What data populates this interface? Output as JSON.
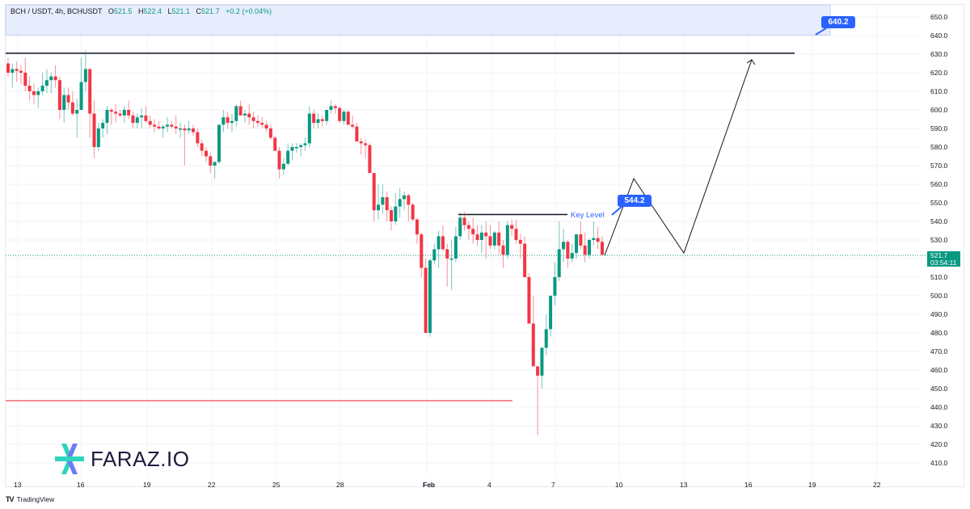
{
  "legend": {
    "symbol": "BCH / USDT, 4h, BCHUSDT",
    "open_label": "O",
    "open": "521.5",
    "high_label": "H",
    "high": "522.4",
    "low_label": "L",
    "low": "521.1",
    "close_label": "C",
    "close": "521.7",
    "change": "+0.2 (+0.04%)"
  },
  "price_axis": {
    "labels": [
      "650.0",
      "640.0",
      "630.0",
      "620.0",
      "610.0",
      "600.0",
      "590.0",
      "580.0",
      "570.0",
      "560.0",
      "550.0",
      "540.0",
      "530.0",
      "520.0",
      "510.0",
      "500.0",
      "490.0",
      "480.0",
      "470.0",
      "460.0",
      "450.0",
      "440.0",
      "430.0",
      "420.0",
      "410.0"
    ],
    "last_price": "521.7",
    "countdown": "03:54:11"
  },
  "time_axis": {
    "labels": [
      "13",
      "16",
      "19",
      "22",
      "25",
      "28",
      "Feb",
      "4",
      "7",
      "10",
      "13",
      "16",
      "19",
      "22"
    ]
  },
  "annotations": {
    "target_zone_callout": "640.2",
    "key_level_callout": "544.2",
    "key_level_text": "Key Level"
  },
  "branding": {
    "logo_text": "FARAZ.IO",
    "footer": "TradingView"
  },
  "colors": {
    "up": "#089981",
    "down": "#f23645",
    "accent": "#2962ff",
    "zone_fill": "#e8edfd",
    "support_line": "#f23645",
    "resistance_line": "#131722"
  },
  "chart_data": {
    "type": "candlestick",
    "title": "BCH / USDT, 4h, BCHUSDT",
    "xlabel": "",
    "ylabel": "",
    "ylim": [
      405,
      655
    ],
    "x_ticks": [
      "13",
      "16",
      "19",
      "22",
      "25",
      "28",
      "Feb",
      "4",
      "7",
      "10",
      "13",
      "16",
      "19",
      "22"
    ],
    "levels": {
      "resistance_top": 630.5,
      "target_zone": [
        640.2,
        655
      ],
      "key_level": 544.2,
      "support": 443.5,
      "last": 521.7
    },
    "projection_path": [
      521.7,
      563,
      523,
      627
    ],
    "candles_ohlc": [
      [
        625,
        628,
        618,
        620
      ],
      [
        620,
        625,
        612,
        622
      ],
      [
        622,
        626,
        615,
        621
      ],
      [
        621,
        624,
        614,
        620
      ],
      [
        620,
        628,
        610,
        613
      ],
      [
        613,
        618,
        605,
        610
      ],
      [
        610,
        614,
        603,
        608
      ],
      [
        608,
        612,
        601,
        610
      ],
      [
        610,
        620,
        608,
        613
      ],
      [
        613,
        622,
        609,
        616
      ],
      [
        616,
        620,
        609,
        618
      ],
      [
        618,
        624,
        612,
        616
      ],
      [
        616,
        618,
        595,
        600
      ],
      [
        600,
        612,
        593,
        608
      ],
      [
        608,
        612,
        600,
        604
      ],
      [
        604,
        610,
        597,
        598
      ],
      [
        598,
        606,
        585,
        600
      ],
      [
        600,
        628,
        600,
        615
      ],
      [
        615,
        632,
        610,
        622
      ],
      [
        622,
        622,
        585,
        598
      ],
      [
        598,
        605,
        574,
        580
      ],
      [
        580,
        593,
        578,
        590
      ],
      [
        590,
        595,
        585,
        593
      ],
      [
        593,
        602,
        587,
        600
      ],
      [
        600,
        601,
        592,
        599
      ],
      [
        599,
        603,
        593,
        598
      ],
      [
        598,
        600,
        596,
        597
      ],
      [
        597,
        602,
        593,
        600
      ],
      [
        600,
        605,
        595,
        597
      ],
      [
        597,
        599,
        590,
        593
      ],
      [
        593,
        598,
        590,
        596
      ],
      [
        596,
        601,
        590,
        597
      ],
      [
        597,
        602,
        593,
        594
      ],
      [
        594,
        597,
        590,
        592
      ],
      [
        592,
        595,
        588,
        591
      ],
      [
        591,
        594,
        589,
        590
      ],
      [
        590,
        592,
        585,
        591
      ],
      [
        591,
        596,
        588,
        592
      ],
      [
        592,
        594,
        590,
        591
      ],
      [
        591,
        597,
        587,
        590
      ],
      [
        590,
        593,
        585,
        590
      ],
      [
        590,
        592,
        570,
        589
      ],
      [
        589,
        594,
        587,
        590
      ],
      [
        590,
        592,
        586,
        588
      ],
      [
        588,
        590,
        580,
        582
      ],
      [
        582,
        584,
        575,
        578
      ],
      [
        578,
        580,
        572,
        575
      ],
      [
        575,
        577,
        566,
        570
      ],
      [
        570,
        571,
        563,
        572
      ],
      [
        572,
        590,
        571,
        592
      ],
      [
        592,
        600,
        588,
        596
      ],
      [
        596,
        599,
        590,
        593
      ],
      [
        593,
        598,
        588,
        594
      ],
      [
        594,
        603,
        591,
        602
      ],
      [
        602,
        605,
        598,
        597
      ],
      [
        597,
        600,
        593,
        598
      ],
      [
        598,
        603,
        592,
        596
      ],
      [
        596,
        599,
        590,
        594
      ],
      [
        594,
        597,
        591,
        593
      ],
      [
        593,
        596,
        590,
        592
      ],
      [
        592,
        594,
        588,
        590
      ],
      [
        590,
        592,
        584,
        585
      ],
      [
        585,
        586,
        578,
        578
      ],
      [
        578,
        580,
        563,
        568
      ],
      [
        568,
        574,
        565,
        571
      ],
      [
        571,
        582,
        570,
        578
      ],
      [
        578,
        582,
        573,
        580
      ],
      [
        580,
        582,
        577,
        580
      ],
      [
        580,
        582,
        575,
        581
      ],
      [
        581,
        585,
        578,
        582
      ],
      [
        582,
        602,
        580,
        598
      ],
      [
        598,
        600,
        590,
        593
      ],
      [
        593,
        598,
        590,
        595
      ],
      [
        595,
        597,
        591,
        594
      ],
      [
        594,
        600,
        592,
        600
      ],
      [
        600,
        605,
        598,
        602
      ],
      [
        602,
        603,
        598,
        601
      ],
      [
        601,
        602,
        593,
        594
      ],
      [
        594,
        600,
        592,
        599
      ],
      [
        599,
        600,
        593,
        592
      ],
      [
        592,
        597,
        590,
        591
      ],
      [
        591,
        593,
        584,
        583
      ],
      [
        583,
        585,
        576,
        582
      ],
      [
        582,
        584,
        574,
        581
      ],
      [
        581,
        582,
        570,
        566
      ],
      [
        566,
        566,
        540,
        546
      ],
      [
        546,
        560,
        541,
        549
      ],
      [
        549,
        560,
        544,
        553
      ],
      [
        553,
        556,
        540,
        546
      ],
      [
        546,
        548,
        535,
        540
      ],
      [
        540,
        555,
        538,
        548
      ],
      [
        548,
        558,
        542,
        552
      ],
      [
        552,
        556,
        546,
        554
      ],
      [
        554,
        555,
        540,
        549
      ],
      [
        549,
        550,
        540,
        541
      ],
      [
        541,
        542,
        528,
        533
      ],
      [
        533,
        534,
        510,
        515
      ],
      [
        515,
        520,
        480,
        480
      ],
      [
        480,
        520,
        478,
        519
      ],
      [
        519,
        528,
        517,
        525
      ],
      [
        525,
        535,
        515,
        532
      ],
      [
        532,
        538,
        524,
        525
      ],
      [
        525,
        528,
        505,
        520
      ],
      [
        520,
        530,
        503,
        520
      ],
      [
        520,
        537,
        518,
        532
      ],
      [
        532,
        545,
        530,
        542
      ],
      [
        542,
        545,
        535,
        538
      ],
      [
        538,
        540,
        530,
        536
      ],
      [
        536,
        542,
        528,
        533
      ],
      [
        533,
        538,
        527,
        530
      ],
      [
        530,
        538,
        523,
        534
      ],
      [
        534,
        540,
        520,
        532
      ],
      [
        532,
        538,
        525,
        527
      ],
      [
        527,
        535,
        525,
        534
      ],
      [
        534,
        540,
        522,
        527
      ],
      [
        527,
        530,
        515,
        522
      ],
      [
        522,
        540,
        520,
        538
      ],
      [
        538,
        541,
        532,
        536
      ],
      [
        536,
        541,
        528,
        530
      ],
      [
        530,
        533,
        520,
        528
      ],
      [
        528,
        532,
        512,
        510
      ],
      [
        510,
        512,
        495,
        485
      ],
      [
        485,
        500,
        476,
        462
      ],
      [
        462,
        462,
        425,
        457
      ],
      [
        457,
        471,
        450,
        472
      ],
      [
        472,
        490,
        468,
        482
      ],
      [
        482,
        500,
        478,
        500
      ],
      [
        500,
        518,
        495,
        510
      ],
      [
        510,
        540,
        508,
        525
      ],
      [
        525,
        536,
        518,
        529
      ],
      [
        529,
        530,
        515,
        520
      ],
      [
        520,
        528,
        518,
        523
      ],
      [
        523,
        533,
        520,
        533
      ],
      [
        533,
        540,
        525,
        527
      ],
      [
        527,
        534,
        518,
        522
      ],
      [
        522,
        531,
        520,
        530
      ],
      [
        530,
        540,
        527,
        531
      ],
      [
        531,
        537,
        525,
        529
      ],
      [
        529,
        532,
        523,
        522
      ]
    ]
  }
}
